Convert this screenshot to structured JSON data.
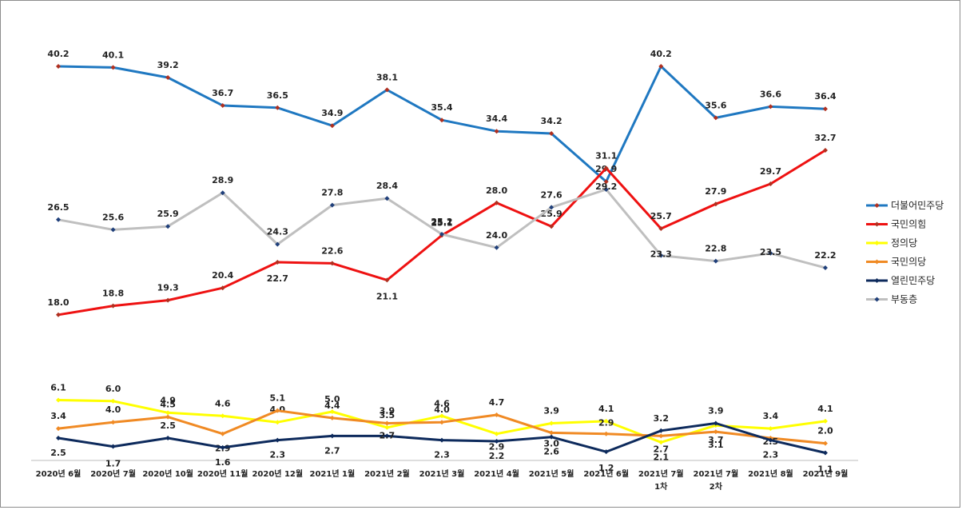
{
  "chart_data": {
    "type": "line",
    "categories": [
      [
        "2020년 6월"
      ],
      [
        "2020년 7월"
      ],
      [
        "2020년 10월"
      ],
      [
        "2020년 11월"
      ],
      [
        "2020년 12월"
      ],
      [
        "2021년 1월"
      ],
      [
        "2021년 2월"
      ],
      [
        "2021년 3월"
      ],
      [
        "2021년 4월"
      ],
      [
        "2021년 5월"
      ],
      [
        "2021년 6월"
      ],
      [
        "2021년 7월",
        "1차"
      ],
      [
        "2021년 7월",
        "2차"
      ],
      [
        "2021년 8월"
      ],
      [
        "2021년 9월"
      ]
    ],
    "series": [
      {
        "name": "더불어민주당",
        "color": "#1f78c1",
        "values": [
          40.2,
          40.1,
          39.2,
          36.7,
          36.5,
          34.9,
          38.1,
          35.4,
          34.4,
          34.2,
          29.9,
          40.2,
          35.6,
          36.6,
          36.4
        ]
      },
      {
        "name": "국민의힘",
        "color": "#ee1111",
        "values": [
          18.0,
          18.8,
          19.3,
          20.4,
          22.7,
          22.6,
          21.1,
          25.1,
          28.0,
          25.9,
          31.1,
          25.7,
          27.9,
          29.7,
          32.7
        ]
      },
      {
        "name": "정의당",
        "color": "#ffff00",
        "values": [
          6.1,
          6.0,
          4.9,
          4.6,
          4.0,
          5.0,
          3.5,
          4.6,
          2.9,
          3.9,
          4.1,
          2.1,
          3.7,
          3.4,
          4.1
        ]
      },
      {
        "name": "국민의당",
        "color": "#f08a24",
        "values": [
          3.4,
          4.0,
          4.5,
          2.9,
          5.1,
          4.4,
          3.9,
          4.0,
          4.7,
          3.0,
          2.9,
          2.7,
          3.1,
          2.5,
          2.0
        ]
      },
      {
        "name": "열린민주당",
        "color": "#0d2a5c",
        "values": [
          2.5,
          1.7,
          2.5,
          1.6,
          2.3,
          2.7,
          2.7,
          2.3,
          2.2,
          2.6,
          1.2,
          3.2,
          3.9,
          2.3,
          1.1
        ]
      },
      {
        "name": "부동층",
        "color": "#bfbfbf",
        "values": [
          26.5,
          25.6,
          25.9,
          28.9,
          24.3,
          27.8,
          28.4,
          25.2,
          24.0,
          27.6,
          29.2,
          23.3,
          22.8,
          23.5,
          22.2
        ]
      }
    ],
    "value_label_decimals": 1,
    "legend_position": "right",
    "grid": false
  }
}
